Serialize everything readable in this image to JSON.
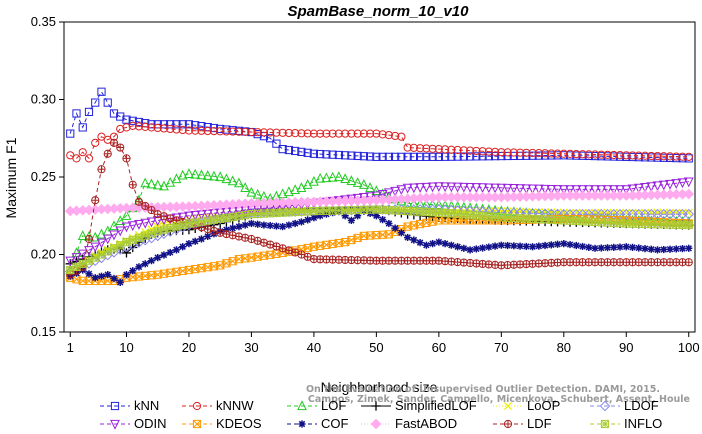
{
  "chart_data": {
    "type": "line",
    "title": "SpamBase_norm_10_v10",
    "xlabel": "Neighborhood size",
    "ylabel": "Maximum F1",
    "xlim": [
      0,
      101
    ],
    "ylim": [
      0.15,
      0.35
    ],
    "xticks": [
      1,
      10,
      20,
      30,
      40,
      50,
      60,
      70,
      80,
      90,
      100
    ],
    "yticks": [
      0.15,
      0.2,
      0.25,
      0.3,
      0.35
    ],
    "ytick_labels": [
      "0.15",
      "0.20",
      "0.25",
      "0.30",
      "0.35"
    ],
    "grid": false,
    "legend_position": "bottom",
    "credit": [
      "Campos, Zimek, Sander, Campello, Micenkova, Schubert, Assent, Houle",
      "On the Evaluation of Unsupervised Outlier Detection. DAMI, 2015."
    ],
    "series": [
      {
        "name": "kNN",
        "color": "#2222dd",
        "marker": "square",
        "style": "dashed",
        "knots": [
          [
            1,
            0.278
          ],
          [
            2,
            0.291
          ],
          [
            3,
            0.282
          ],
          [
            4,
            0.292
          ],
          [
            5,
            0.298
          ],
          [
            6,
            0.305
          ],
          [
            7,
            0.298
          ],
          [
            8,
            0.291
          ],
          [
            9,
            0.289
          ],
          [
            10,
            0.287
          ],
          [
            14,
            0.284
          ],
          [
            20,
            0.284
          ],
          [
            25,
            0.281
          ],
          [
            30,
            0.279
          ],
          [
            33,
            0.275
          ],
          [
            35,
            0.268
          ],
          [
            40,
            0.265
          ],
          [
            50,
            0.263
          ],
          [
            60,
            0.263
          ],
          [
            80,
            0.264
          ],
          [
            100,
            0.262
          ]
        ]
      },
      {
        "name": "kNNW",
        "color": "#dd2222",
        "marker": "circle",
        "style": "dashed",
        "knots": [
          [
            1,
            0.264
          ],
          [
            2,
            0.262
          ],
          [
            3,
            0.266
          ],
          [
            4,
            0.262
          ],
          [
            5,
            0.272
          ],
          [
            6,
            0.276
          ],
          [
            7,
            0.274
          ],
          [
            8,
            0.276
          ],
          [
            9,
            0.281
          ],
          [
            11,
            0.283
          ],
          [
            14,
            0.282
          ],
          [
            20,
            0.28
          ],
          [
            30,
            0.279
          ],
          [
            40,
            0.278
          ],
          [
            50,
            0.278
          ],
          [
            54,
            0.276
          ],
          [
            55,
            0.269
          ],
          [
            70,
            0.266
          ],
          [
            100,
            0.263
          ]
        ]
      },
      {
        "name": "LOF",
        "color": "#22cc22",
        "marker": "triangle-up",
        "style": "dashed",
        "knots": [
          [
            1,
            0.19
          ],
          [
            3,
            0.212
          ],
          [
            5,
            0.211
          ],
          [
            7,
            0.215
          ],
          [
            10,
            0.225
          ],
          [
            12,
            0.235
          ],
          [
            13,
            0.246
          ],
          [
            16,
            0.244
          ],
          [
            19,
            0.251
          ],
          [
            20,
            0.252
          ],
          [
            25,
            0.25
          ],
          [
            28,
            0.246
          ],
          [
            30,
            0.24
          ],
          [
            33,
            0.236
          ],
          [
            35,
            0.239
          ],
          [
            38,
            0.243
          ],
          [
            41,
            0.249
          ],
          [
            44,
            0.25
          ],
          [
            48,
            0.245
          ],
          [
            52,
            0.237
          ],
          [
            55,
            0.233
          ],
          [
            60,
            0.232
          ],
          [
            70,
            0.228
          ],
          [
            80,
            0.225
          ],
          [
            90,
            0.222
          ],
          [
            100,
            0.221
          ]
        ]
      },
      {
        "name": "SimplifiedLOF",
        "color": "#000000",
        "marker": "plus",
        "style": "solid",
        "knots": [
          [
            1,
            0.194
          ],
          [
            3,
            0.197
          ],
          [
            5,
            0.2
          ],
          [
            7,
            0.203
          ],
          [
            9,
            0.204
          ],
          [
            10,
            0.201
          ],
          [
            12,
            0.208
          ],
          [
            14,
            0.213
          ],
          [
            16,
            0.215
          ],
          [
            20,
            0.216
          ],
          [
            25,
            0.22
          ],
          [
            30,
            0.226
          ],
          [
            35,
            0.228
          ],
          [
            40,
            0.23
          ],
          [
            45,
            0.23
          ],
          [
            50,
            0.23
          ],
          [
            55,
            0.226
          ],
          [
            60,
            0.224
          ],
          [
            70,
            0.222
          ],
          [
            80,
            0.221
          ],
          [
            90,
            0.22
          ],
          [
            100,
            0.219
          ]
        ]
      },
      {
        "name": "LoOP",
        "color": "#eeee00",
        "marker": "x",
        "style": "dotted",
        "knots": [
          [
            1,
            0.187
          ],
          [
            5,
            0.199
          ],
          [
            10,
            0.209
          ],
          [
            15,
            0.218
          ],
          [
            20,
            0.223
          ],
          [
            30,
            0.228
          ],
          [
            40,
            0.228
          ],
          [
            50,
            0.229
          ],
          [
            60,
            0.228
          ],
          [
            70,
            0.228
          ],
          [
            80,
            0.227
          ],
          [
            90,
            0.227
          ],
          [
            100,
            0.227
          ]
        ]
      },
      {
        "name": "LDOF",
        "color": "#8888ee",
        "marker": "diamond",
        "style": "dashed",
        "knots": [
          [
            1,
            0.189
          ],
          [
            5,
            0.196
          ],
          [
            10,
            0.205
          ],
          [
            15,
            0.212
          ],
          [
            20,
            0.219
          ],
          [
            25,
            0.223
          ],
          [
            30,
            0.227
          ],
          [
            40,
            0.228
          ],
          [
            50,
            0.229
          ],
          [
            60,
            0.229
          ],
          [
            70,
            0.227
          ],
          [
            80,
            0.226
          ],
          [
            90,
            0.226
          ],
          [
            100,
            0.226
          ]
        ]
      },
      {
        "name": "ODIN",
        "color": "#9922dd",
        "marker": "triangle-down",
        "style": "dashed",
        "knots": [
          [
            1,
            0.196
          ],
          [
            5,
            0.205
          ],
          [
            10,
            0.218
          ],
          [
            15,
            0.222
          ],
          [
            20,
            0.225
          ],
          [
            30,
            0.229
          ],
          [
            40,
            0.233
          ],
          [
            50,
            0.238
          ],
          [
            55,
            0.243
          ],
          [
            60,
            0.244
          ],
          [
            70,
            0.243
          ],
          [
            80,
            0.242
          ],
          [
            90,
            0.242
          ],
          [
            100,
            0.247
          ]
        ]
      },
      {
        "name": "KDEOS",
        "color": "#ff9900",
        "marker": "square-x",
        "style": "dashed",
        "knots": [
          [
            1,
            0.185
          ],
          [
            3,
            0.183
          ],
          [
            5,
            0.183
          ],
          [
            8,
            0.183
          ],
          [
            10,
            0.185
          ],
          [
            15,
            0.187
          ],
          [
            20,
            0.19
          ],
          [
            25,
            0.193
          ],
          [
            28,
            0.197
          ],
          [
            30,
            0.198
          ],
          [
            35,
            0.201
          ],
          [
            40,
            0.205
          ],
          [
            45,
            0.208
          ],
          [
            48,
            0.212
          ],
          [
            52,
            0.213
          ],
          [
            55,
            0.218
          ],
          [
            60,
            0.222
          ],
          [
            70,
            0.222
          ],
          [
            80,
            0.223
          ],
          [
            90,
            0.222
          ],
          [
            100,
            0.22
          ]
        ]
      },
      {
        "name": "COF",
        "color": "#111188",
        "marker": "asterisk",
        "style": "dashed",
        "knots": [
          [
            1,
            0.186
          ],
          [
            3,
            0.19
          ],
          [
            5,
            0.185
          ],
          [
            7,
            0.187
          ],
          [
            9,
            0.182
          ],
          [
            10,
            0.187
          ],
          [
            12,
            0.192
          ],
          [
            15,
            0.198
          ],
          [
            18,
            0.203
          ],
          [
            20,
            0.207
          ],
          [
            22,
            0.21
          ],
          [
            25,
            0.215
          ],
          [
            28,
            0.218
          ],
          [
            30,
            0.22
          ],
          [
            32,
            0.219
          ],
          [
            35,
            0.218
          ],
          [
            38,
            0.221
          ],
          [
            41,
            0.225
          ],
          [
            44,
            0.228
          ],
          [
            46,
            0.222
          ],
          [
            48,
            0.228
          ],
          [
            50,
            0.225
          ],
          [
            52,
            0.22
          ],
          [
            55,
            0.211
          ],
          [
            58,
            0.206
          ],
          [
            60,
            0.208
          ],
          [
            65,
            0.203
          ],
          [
            70,
            0.206
          ],
          [
            75,
            0.205
          ],
          [
            80,
            0.207
          ],
          [
            85,
            0.204
          ],
          [
            90,
            0.205
          ],
          [
            95,
            0.203
          ],
          [
            100,
            0.204
          ]
        ]
      },
      {
        "name": "FastABOD",
        "color": "#ffaaee",
        "marker": "diamond-filled",
        "style": "dotted",
        "knots": [
          [
            1,
            0.228
          ],
          [
            5,
            0.229
          ],
          [
            10,
            0.23
          ],
          [
            20,
            0.231
          ],
          [
            30,
            0.233
          ],
          [
            40,
            0.234
          ],
          [
            50,
            0.235
          ],
          [
            60,
            0.237
          ],
          [
            70,
            0.237
          ],
          [
            80,
            0.238
          ],
          [
            90,
            0.238
          ],
          [
            100,
            0.239
          ]
        ]
      },
      {
        "name": "LDF",
        "color": "#aa2222",
        "marker": "circle-plus",
        "style": "dashed",
        "knots": [
          [
            1,
            0.187
          ],
          [
            3,
            0.192
          ],
          [
            4,
            0.21
          ],
          [
            5,
            0.235
          ],
          [
            6,
            0.255
          ],
          [
            7,
            0.265
          ],
          [
            8,
            0.272
          ],
          [
            9,
            0.269
          ],
          [
            10,
            0.262
          ],
          [
            11,
            0.245
          ],
          [
            12,
            0.234
          ],
          [
            15,
            0.226
          ],
          [
            18,
            0.222
          ],
          [
            20,
            0.22
          ],
          [
            25,
            0.214
          ],
          [
            30,
            0.21
          ],
          [
            35,
            0.204
          ],
          [
            38,
            0.2
          ],
          [
            40,
            0.197
          ],
          [
            50,
            0.196
          ],
          [
            60,
            0.196
          ],
          [
            70,
            0.193
          ],
          [
            80,
            0.195
          ],
          [
            90,
            0.195
          ],
          [
            100,
            0.195
          ]
        ]
      },
      {
        "name": "INFLO",
        "color": "#aacc33",
        "marker": "square-star",
        "style": "dashed",
        "knots": [
          [
            1,
            0.19
          ],
          [
            5,
            0.198
          ],
          [
            10,
            0.208
          ],
          [
            15,
            0.215
          ],
          [
            20,
            0.22
          ],
          [
            30,
            0.226
          ],
          [
            40,
            0.228
          ],
          [
            50,
            0.229
          ],
          [
            55,
            0.228
          ],
          [
            60,
            0.227
          ],
          [
            70,
            0.224
          ],
          [
            80,
            0.222
          ],
          [
            90,
            0.22
          ],
          [
            100,
            0.219
          ]
        ]
      }
    ]
  }
}
